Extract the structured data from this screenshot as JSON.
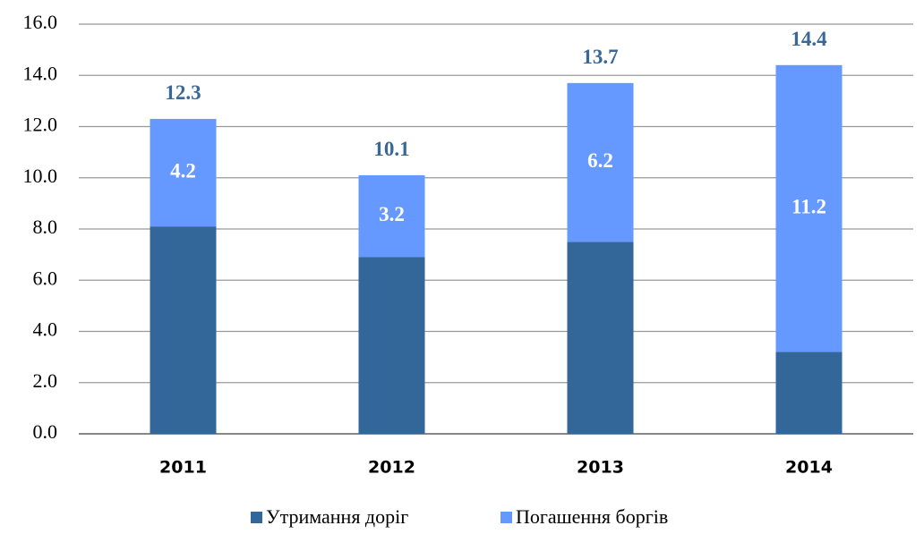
{
  "chart_data": {
    "type": "stacked_bar",
    "categories": [
      "2011",
      "2012",
      "2013",
      "2014"
    ],
    "series": [
      {
        "name": "Утримання доріг",
        "color": "#336699",
        "values": [
          8.1,
          6.9,
          7.5,
          3.2
        ]
      },
      {
        "name": "Погашення боргів",
        "color": "#6699ff",
        "values": [
          4.2,
          3.2,
          6.2,
          11.2
        ],
        "value_labels": [
          "4.2",
          "3.2",
          "6.2",
          "11.2"
        ]
      }
    ],
    "totals": [
      "12.3",
      "10.1",
      "13.7",
      "14.4"
    ],
    "ylim": [
      0,
      16
    ],
    "yticks": [
      {
        "value": 0,
        "label": "0.0"
      },
      {
        "value": 2,
        "label": "2.0"
      },
      {
        "value": 4,
        "label": "4.0"
      },
      {
        "value": 6,
        "label": "6.0"
      },
      {
        "value": 8,
        "label": "8.0"
      },
      {
        "value": 10,
        "label": "10.0"
      },
      {
        "value": 12,
        "label": "12.0"
      },
      {
        "value": 14,
        "label": "14.0"
      },
      {
        "value": 16,
        "label": "16.0"
      }
    ],
    "grid": true,
    "legend": "bottom"
  }
}
